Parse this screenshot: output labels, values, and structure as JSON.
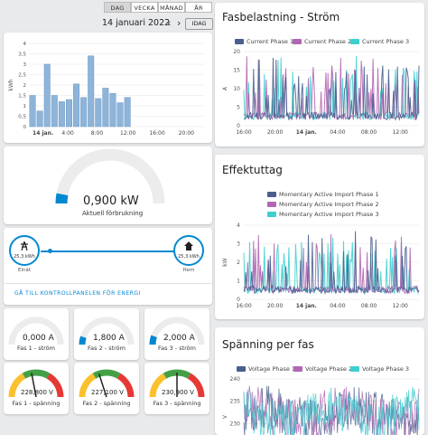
{
  "date_nav": {
    "modes": [
      "DAG",
      "VECKA",
      "MÅNAD",
      "ÅR"
    ],
    "active_mode": "DAG",
    "date": "14 januari 2022",
    "today_label": "IDAG"
  },
  "energy_usage": {
    "chart_data": {
      "type": "bar",
      "ylabel": "kWh",
      "ylim": [
        0,
        4
      ],
      "yticks": [
        "0",
        "0,5",
        "1",
        "1,5",
        "2",
        "2,5",
        "3",
        "3,5",
        "4"
      ],
      "xticks": [
        "14 jan.",
        "4:00",
        "8:00",
        "12:00",
        "16:00",
        "20:00"
      ],
      "hours": [
        0,
        1,
        2,
        3,
        4,
        5,
        6,
        7,
        8,
        9,
        10,
        11,
        12,
        13
      ],
      "values": [
        1.5,
        0.75,
        3.0,
        1.5,
        1.2,
        1.3,
        2.05,
        1.4,
        3.4,
        1.35,
        1.85,
        1.6,
        1.15,
        1.4
      ],
      "color": "#8fb4d9"
    }
  },
  "gauge": {
    "value": "0,900 kW",
    "label": "Aktuell förbrukning",
    "fill_fraction": 0.06,
    "color": "#0288d1"
  },
  "flow": {
    "grid_value": "25,3 kWh",
    "grid_label": "Elnät",
    "home_value": "25,3 kWh",
    "home_label": "Hem",
    "link": "GÅ TILL KONTROLLPANELEN FÖR ENERGI"
  },
  "phases_current": [
    {
      "value": "0,000 A",
      "label": "Fas 1 - ström",
      "fill_fraction": 0.0
    },
    {
      "value": "1,800 A",
      "label": "Fas 2 - ström",
      "fill_fraction": 0.1
    },
    {
      "value": "2,000 A",
      "label": "Fas 3 - ström",
      "fill_fraction": 0.11
    }
  ],
  "phases_voltage": [
    {
      "value": "228,800 V",
      "label": "Fas 1 - spänning",
      "needle_fraction": 0.44
    },
    {
      "value": "227,100 V",
      "label": "Fas 2 - spänning",
      "needle_fraction": 0.4
    },
    {
      "value": "230,900 V",
      "label": "Fas 3 - spänning",
      "needle_fraction": 0.5
    }
  ],
  "fasbelastning": {
    "title": "Fasbelastning - Ström",
    "chart_data": {
      "type": "line",
      "ylabel": "A",
      "ylim": [
        0,
        20
      ],
      "yticks": [
        "0",
        "5",
        "10",
        "15",
        "20"
      ],
      "xticks": [
        "16:00",
        "20:00",
        "14 jan.",
        "04:00",
        "08:00",
        "12:00"
      ],
      "series": [
        {
          "name": "Current Phase 1",
          "color": "#4a5f8f"
        },
        {
          "name": "Current Phase 2",
          "color": "#b167b3"
        },
        {
          "name": "Current Phase 3",
          "color": "#3fcfcf"
        }
      ]
    }
  },
  "effektuttag": {
    "title": "Effektuttag",
    "chart_data": {
      "type": "line",
      "ylabel": "kW",
      "ylim": [
        0,
        4
      ],
      "yticks": [
        "0",
        "1",
        "2",
        "3",
        "4"
      ],
      "xticks": [
        "16:00",
        "20:00",
        "14 jan.",
        "04:00",
        "08:00",
        "12:00"
      ],
      "series": [
        {
          "name": "Momentary Active Import Phase 1",
          "color": "#4a5f8f"
        },
        {
          "name": "Momentary Active Import Phase 2",
          "color": "#b167b3"
        },
        {
          "name": "Momentary Active Import Phase 3",
          "color": "#3fcfcf"
        }
      ]
    }
  },
  "spanning": {
    "title": "Spänning per fas",
    "chart_data": {
      "type": "line",
      "ylabel": "V",
      "ylim": [
        225,
        240
      ],
      "yticks": [
        "230",
        "235",
        "240"
      ],
      "series": [
        {
          "name": "Voltage Phase 1",
          "color": "#4a5f8f"
        },
        {
          "name": "Voltage Phase 2",
          "color": "#b167b3"
        },
        {
          "name": "Voltage Phase 3",
          "color": "#3fcfcf"
        }
      ]
    }
  }
}
